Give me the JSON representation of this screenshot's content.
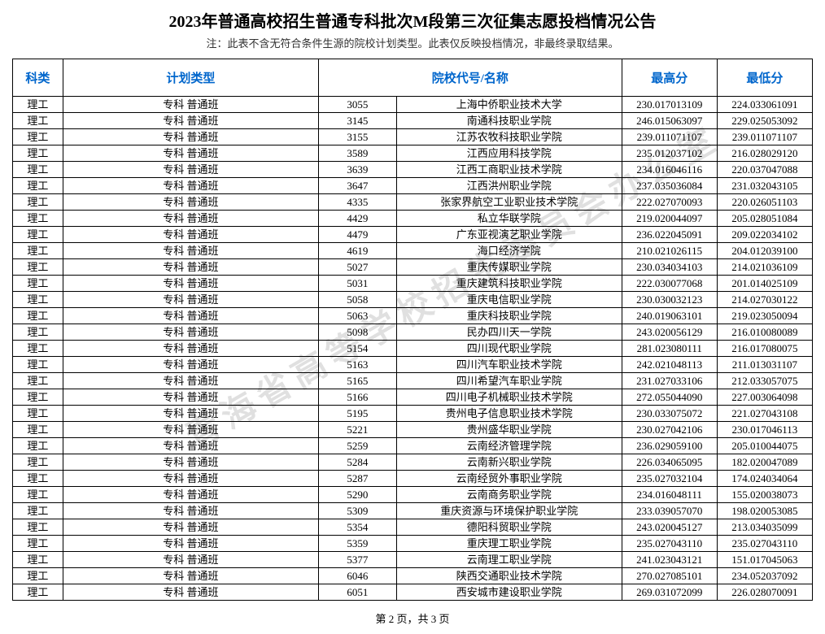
{
  "title": "2023年普通高校招生普通专科批次M段第三次征集志愿投档情况公告",
  "note": "注：此表不含无符合条件生源的院校计划类型。此表仅反映投档情况，非最终录取结果。",
  "watermark": "青海省高等学校招生委员会办公室",
  "pager": "第 2 页，共 3 页",
  "headers": {
    "category": "科类",
    "plan_type": "计划类型",
    "school": "院校代号/名称",
    "high": "最高分",
    "low": "最低分"
  },
  "category_label": "理工",
  "plan_type_label": "专科  普通班",
  "rows": [
    {
      "code": "3055",
      "name": "上海中侨职业技术大学",
      "high": "230.017013109",
      "low": "224.033061091"
    },
    {
      "code": "3145",
      "name": "南通科技职业学院",
      "high": "246.015063097",
      "low": "229.025053092"
    },
    {
      "code": "3155",
      "name": "江苏农牧科技职业学院",
      "high": "239.011071107",
      "low": "239.011071107"
    },
    {
      "code": "3589",
      "name": "江西应用科技学院",
      "high": "235.012037102",
      "low": "216.028029120"
    },
    {
      "code": "3639",
      "name": "江西工商职业技术学院",
      "high": "234.016046116",
      "low": "220.037047088"
    },
    {
      "code": "3647",
      "name": "江西洪州职业学院",
      "high": "237.035036084",
      "low": "231.032043105"
    },
    {
      "code": "4335",
      "name": "张家界航空工业职业技术学院",
      "high": "222.027070093",
      "low": "220.026051103"
    },
    {
      "code": "4429",
      "name": "私立华联学院",
      "high": "219.020044097",
      "low": "205.028051084"
    },
    {
      "code": "4479",
      "name": "广东亚视演艺职业学院",
      "high": "236.022045091",
      "low": "209.022034102"
    },
    {
      "code": "4619",
      "name": "海口经济学院",
      "high": "210.021026115",
      "low": "204.012039100"
    },
    {
      "code": "5027",
      "name": "重庆传媒职业学院",
      "high": "230.034034103",
      "low": "214.021036109"
    },
    {
      "code": "5031",
      "name": "重庆建筑科技职业学院",
      "high": "222.030077068",
      "low": "201.014025109"
    },
    {
      "code": "5058",
      "name": "重庆电信职业学院",
      "high": "230.030032123",
      "low": "214.027030122"
    },
    {
      "code": "5063",
      "name": "重庆科技职业学院",
      "high": "240.019063101",
      "low": "219.023050094"
    },
    {
      "code": "5098",
      "name": "民办四川天一学院",
      "high": "243.020056129",
      "low": "216.010080089"
    },
    {
      "code": "5154",
      "name": "四川现代职业学院",
      "high": "281.023080111",
      "low": "216.017080075"
    },
    {
      "code": "5163",
      "name": "四川汽车职业技术学院",
      "high": "242.021048113",
      "low": "211.013031107"
    },
    {
      "code": "5165",
      "name": "四川希望汽车职业学院",
      "high": "231.027033106",
      "low": "212.033057075"
    },
    {
      "code": "5166",
      "name": "四川电子机械职业技术学院",
      "high": "272.055044090",
      "low": "227.003064098"
    },
    {
      "code": "5195",
      "name": "贵州电子信息职业技术学院",
      "high": "230.033075072",
      "low": "221.027043108"
    },
    {
      "code": "5221",
      "name": "贵州盛华职业学院",
      "high": "230.027042106",
      "low": "230.017046113"
    },
    {
      "code": "5259",
      "name": "云南经济管理学院",
      "high": "236.029059100",
      "low": "205.010044075"
    },
    {
      "code": "5284",
      "name": "云南新兴职业学院",
      "high": "226.034065095",
      "low": "182.020047089"
    },
    {
      "code": "5287",
      "name": "云南经贸外事职业学院",
      "high": "235.027032104",
      "low": "174.024034064"
    },
    {
      "code": "5290",
      "name": "云南商务职业学院",
      "high": "234.016048111",
      "low": "155.020038073"
    },
    {
      "code": "5309",
      "name": "重庆资源与环境保护职业学院",
      "high": "233.039057070",
      "low": "198.020053085"
    },
    {
      "code": "5354",
      "name": "德阳科贸职业学院",
      "high": "243.020045127",
      "low": "213.034035099"
    },
    {
      "code": "5359",
      "name": "重庆理工职业学院",
      "high": "235.027043110",
      "low": "235.027043110"
    },
    {
      "code": "5377",
      "name": "云南理工职业学院",
      "high": "241.023043121",
      "low": "151.017045063"
    },
    {
      "code": "6046",
      "name": "陕西交通职业技术学院",
      "high": "270.027085101",
      "low": "234.052037092"
    },
    {
      "code": "6051",
      "name": "西安城市建设职业学院",
      "high": "269.031072099",
      "low": "226.028070091"
    }
  ]
}
